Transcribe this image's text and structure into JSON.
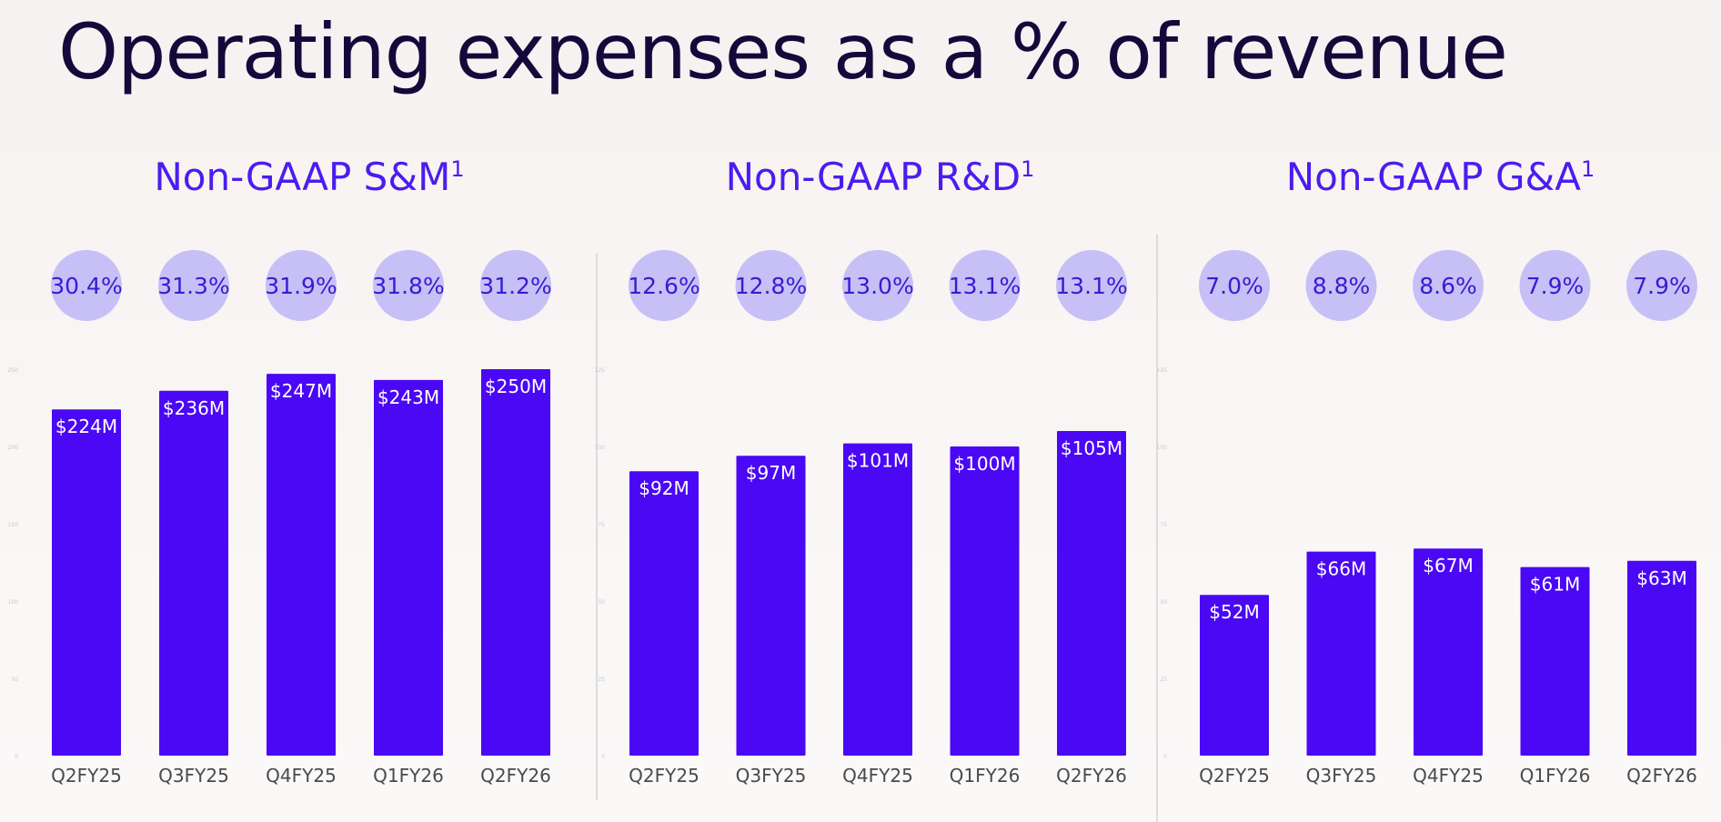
{
  "title": "Operating expenses as a % of revenue",
  "colors": {
    "bar": "#4a08f5",
    "circle": "#c6c0f6",
    "title": "#14093a",
    "accent": "#4b1cf0"
  },
  "chart_data": [
    {
      "type": "bar",
      "title": "Non-GAAP S&M",
      "title_sup": "1",
      "categories": [
        "Q2FY25",
        "Q3FY25",
        "Q4FY25",
        "Q1FY26",
        "Q2FY26"
      ],
      "values": [
        224,
        236,
        247,
        243,
        250
      ],
      "value_labels": [
        "$224M",
        "$236M",
        "$247M",
        "$243M",
        "$250M"
      ],
      "percent_labels": [
        "30.4%",
        "31.3%",
        "31.9%",
        "31.8%",
        "31.2%"
      ],
      "ylim": [
        0,
        250
      ],
      "yticks": [
        0,
        50,
        100,
        150,
        200,
        250
      ],
      "grid": false
    },
    {
      "type": "bar",
      "title": "Non-GAAP R&D",
      "title_sup": "1",
      "categories": [
        "Q2FY25",
        "Q3FY25",
        "Q4FY25",
        "Q1FY26",
        "Q2FY26"
      ],
      "values": [
        92,
        97,
        101,
        100,
        105
      ],
      "value_labels": [
        "$92M",
        "$97M",
        "$101M",
        "$100M",
        "$105M"
      ],
      "percent_labels": [
        "12.6%",
        "12.8%",
        "13.0%",
        "13.1%",
        "13.1%"
      ],
      "ylim": [
        0,
        125
      ],
      "yticks": [
        0,
        25,
        50,
        75,
        100,
        125
      ],
      "grid": false
    },
    {
      "type": "bar",
      "title": "Non-GAAP G&A",
      "title_sup": "1",
      "categories": [
        "Q2FY25",
        "Q3FY25",
        "Q4FY25",
        "Q1FY26",
        "Q2FY26"
      ],
      "values": [
        52,
        66,
        67,
        61,
        63
      ],
      "value_labels": [
        "$52M",
        "$66M",
        "$67M",
        "$61M",
        "$63M"
      ],
      "percent_labels": [
        "7.0%",
        "8.8%",
        "8.6%",
        "7.9%",
        "7.9%"
      ],
      "ylim": [
        0,
        125
      ],
      "yticks": [
        0,
        25,
        50,
        75,
        100,
        125
      ],
      "grid": false
    }
  ]
}
